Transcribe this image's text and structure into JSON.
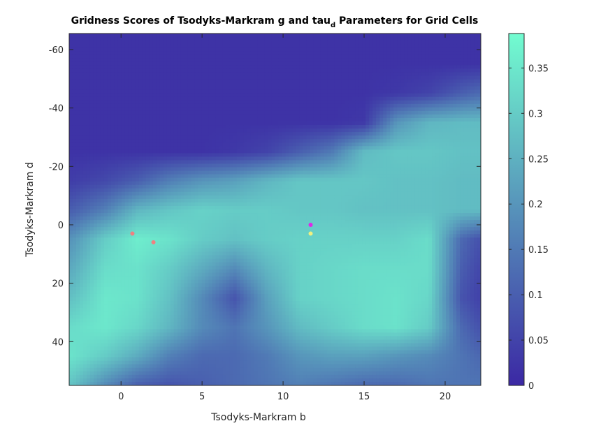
{
  "chart_data": {
    "type": "heatmap",
    "title": "Gridness Scores of Tsodyks-Markram g and tau",
    "title_subscript": "d",
    "title_suffix": " Parameters for Grid Cells",
    "xlabel": "Tsodyks-Markram b",
    "ylabel": "Tsodyks-Markram d",
    "xlim": [
      -3.2,
      22.2
    ],
    "ylim": [
      -65.5,
      55
    ],
    "y_reversed": true,
    "x_ticks": [
      0,
      5,
      10,
      15,
      20
    ],
    "x_tick_labels": [
      "0",
      "5",
      "10",
      "15",
      "20"
    ],
    "y_ticks": [
      -60,
      -40,
      -20,
      0,
      20,
      40
    ],
    "y_tick_labels": [
      "-60",
      "-40",
      "-20",
      "0",
      "20",
      "40"
    ],
    "colorbar": {
      "min": 0,
      "max": 0.388,
      "ticks": [
        0,
        0.05,
        0.1,
        0.15,
        0.2,
        0.25,
        0.3,
        0.35
      ],
      "tick_labels": [
        "0",
        "0.05",
        "0.1",
        "0.15",
        "0.2",
        "0.25",
        "0.3",
        "0.35"
      ],
      "colors": [
        "#3b28a4",
        "#72fcd0"
      ]
    },
    "grid": false,
    "heatmap_x": [
      -3,
      -1,
      1,
      3,
      5,
      7,
      9,
      11,
      13,
      15,
      17,
      19,
      21,
      22
    ],
    "heatmap_y": [
      -65,
      -55,
      -45,
      -35,
      -25,
      -15,
      -5,
      5,
      15,
      25,
      35,
      45,
      55
    ],
    "heatmap_values": [
      [
        0.02,
        0.02,
        0.02,
        0.02,
        0.02,
        0.02,
        0.02,
        0.02,
        0.02,
        0.02,
        0.02,
        0.02,
        0.02,
        0.02
      ],
      [
        0.02,
        0.02,
        0.02,
        0.02,
        0.02,
        0.02,
        0.02,
        0.02,
        0.02,
        0.02,
        0.02,
        0.02,
        0.02,
        0.02
      ],
      [
        0.02,
        0.02,
        0.02,
        0.02,
        0.02,
        0.02,
        0.02,
        0.02,
        0.02,
        0.02,
        0.03,
        0.05,
        0.1,
        0.12
      ],
      [
        0.02,
        0.02,
        0.02,
        0.02,
        0.02,
        0.02,
        0.02,
        0.02,
        0.02,
        0.03,
        0.2,
        0.26,
        0.27,
        0.27
      ],
      [
        0.02,
        0.02,
        0.02,
        0.02,
        0.02,
        0.03,
        0.05,
        0.1,
        0.15,
        0.27,
        0.29,
        0.29,
        0.28,
        0.28
      ],
      [
        0.04,
        0.06,
        0.1,
        0.16,
        0.2,
        0.22,
        0.26,
        0.29,
        0.29,
        0.29,
        0.28,
        0.28,
        0.27,
        0.27
      ],
      [
        0.1,
        0.16,
        0.26,
        0.29,
        0.31,
        0.3,
        0.3,
        0.29,
        0.29,
        0.28,
        0.28,
        0.28,
        0.27,
        0.27
      ],
      [
        0.2,
        0.3,
        0.36,
        0.34,
        0.3,
        0.28,
        0.3,
        0.31,
        0.31,
        0.31,
        0.31,
        0.33,
        0.12,
        0.08
      ],
      [
        0.24,
        0.33,
        0.34,
        0.3,
        0.24,
        0.18,
        0.26,
        0.31,
        0.32,
        0.33,
        0.33,
        0.33,
        0.1,
        0.06
      ],
      [
        0.28,
        0.35,
        0.34,
        0.28,
        0.18,
        0.08,
        0.22,
        0.31,
        0.32,
        0.33,
        0.34,
        0.32,
        0.08,
        0.05
      ],
      [
        0.33,
        0.35,
        0.32,
        0.26,
        0.18,
        0.14,
        0.2,
        0.27,
        0.3,
        0.33,
        0.34,
        0.3,
        0.12,
        0.08
      ],
      [
        0.34,
        0.3,
        0.24,
        0.16,
        0.12,
        0.12,
        0.15,
        0.2,
        0.22,
        0.22,
        0.2,
        0.18,
        0.14,
        0.12
      ],
      [
        0.28,
        0.18,
        0.1,
        0.08,
        0.1,
        0.12,
        0.14,
        0.16,
        0.14,
        0.12,
        0.12,
        0.14,
        0.14,
        0.14
      ]
    ],
    "points": [
      {
        "x": 0.7,
        "y": 3,
        "color": "#f08080"
      },
      {
        "x": 2.0,
        "y": 6,
        "color": "#f08080"
      },
      {
        "x": 11.7,
        "y": 0,
        "color": "#e028e8"
      },
      {
        "x": 11.7,
        "y": 3,
        "color": "#f0f080"
      }
    ]
  }
}
